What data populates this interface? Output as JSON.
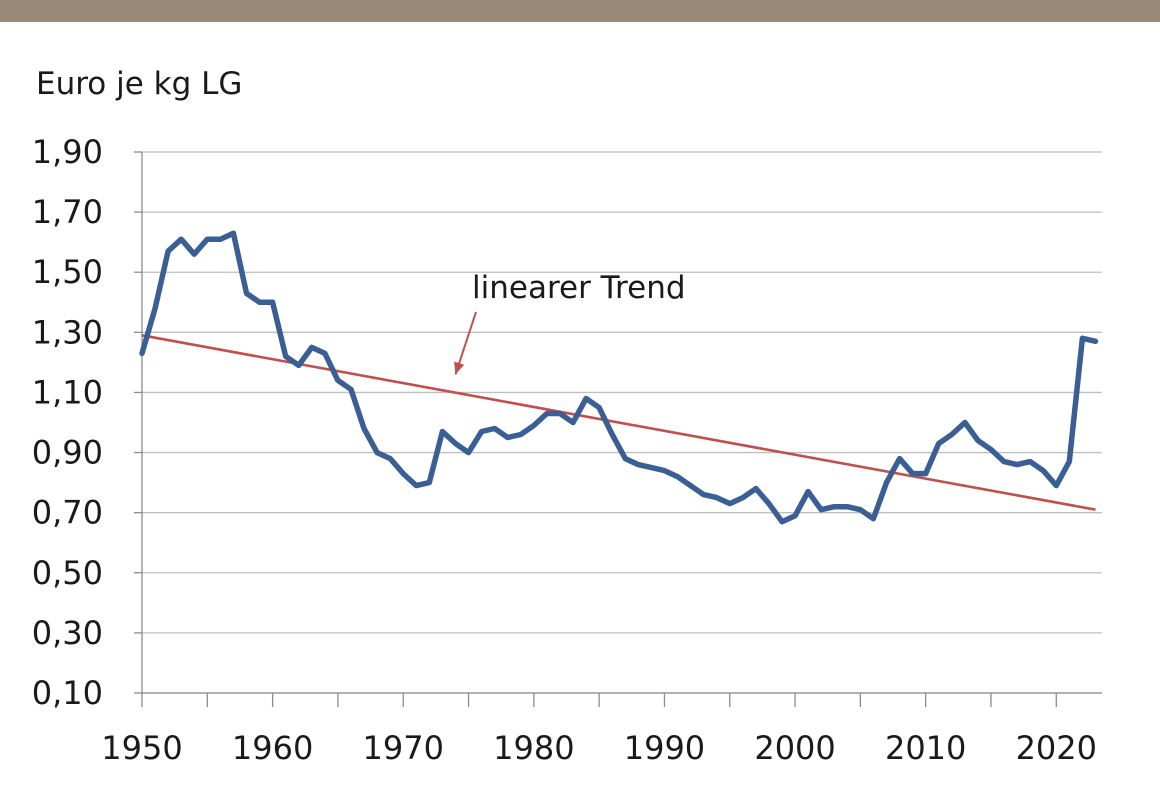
{
  "colors": {
    "top_bar": "#9a8b78",
    "price_line": "#3a5f94",
    "trend_line": "#c0504d",
    "grid": "#bfbfbf",
    "axis": "#8c8c8c"
  },
  "chart_data": {
    "type": "line",
    "title": "",
    "ylabel": "Euro je kg LG",
    "xlabel": "",
    "xlim": [
      1950,
      2023.5
    ],
    "ylim": [
      0.1,
      1.9
    ],
    "y_ticks": [
      "0,10",
      "0,30",
      "0,50",
      "0,70",
      "0,90",
      "1,10",
      "1,30",
      "1,50",
      "1,70",
      "1,90"
    ],
    "y_tick_values": [
      0.1,
      0.3,
      0.5,
      0.7,
      0.9,
      1.1,
      1.3,
      1.5,
      1.7,
      1.9
    ],
    "x_ticks": [
      "1950",
      "1960",
      "1970",
      "1980",
      "1990",
      "2000",
      "2010",
      "2020"
    ],
    "x_tick_values": [
      1950,
      1960,
      1970,
      1980,
      1990,
      2000,
      2010,
      2020
    ],
    "grid": true,
    "annotation": {
      "text": "linearer Trend",
      "arrow_to": [
        1974,
        1.16
      ]
    },
    "series": [
      {
        "role": "price",
        "x": [
          1950,
          1951,
          1952,
          1953,
          1954,
          1955,
          1956,
          1957,
          1958,
          1959,
          1960,
          1961,
          1962,
          1963,
          1964,
          1965,
          1966,
          1967,
          1968,
          1969,
          1970,
          1971,
          1972,
          1973,
          1974,
          1975,
          1976,
          1977,
          1978,
          1979,
          1980,
          1981,
          1982,
          1983,
          1984,
          1985,
          1986,
          1987,
          1988,
          1989,
          1990,
          1991,
          1992,
          1993,
          1994,
          1995,
          1996,
          1997,
          1998,
          1999,
          2000,
          2001,
          2002,
          2003,
          2004,
          2005,
          2006,
          2007,
          2008,
          2009,
          2010,
          2011,
          2012,
          2013,
          2014,
          2015,
          2016,
          2017,
          2018,
          2019,
          2020,
          2021,
          2022,
          2023
        ],
        "values": [
          1.23,
          1.38,
          1.57,
          1.61,
          1.56,
          1.61,
          1.61,
          1.63,
          1.43,
          1.4,
          1.4,
          1.22,
          1.19,
          1.25,
          1.23,
          1.14,
          1.11,
          0.98,
          0.9,
          0.88,
          0.83,
          0.79,
          0.8,
          0.97,
          0.93,
          0.9,
          0.97,
          0.98,
          0.95,
          0.96,
          0.99,
          1.03,
          1.03,
          1.0,
          1.08,
          1.05,
          0.96,
          0.88,
          0.86,
          0.85,
          0.84,
          0.82,
          0.79,
          0.76,
          0.75,
          0.73,
          0.75,
          0.78,
          0.73,
          0.67,
          0.69,
          0.77,
          0.71,
          0.72,
          0.72,
          0.71,
          0.68,
          0.8,
          0.88,
          0.83,
          0.83,
          0.93,
          0.96,
          1.0,
          0.94,
          0.91,
          0.87,
          0.86,
          0.87,
          0.84,
          0.79,
          0.87,
          1.28,
          1.27
        ]
      },
      {
        "role": "trend",
        "x": [
          1950,
          2023
        ],
        "values": [
          1.29,
          0.71
        ]
      }
    ]
  }
}
